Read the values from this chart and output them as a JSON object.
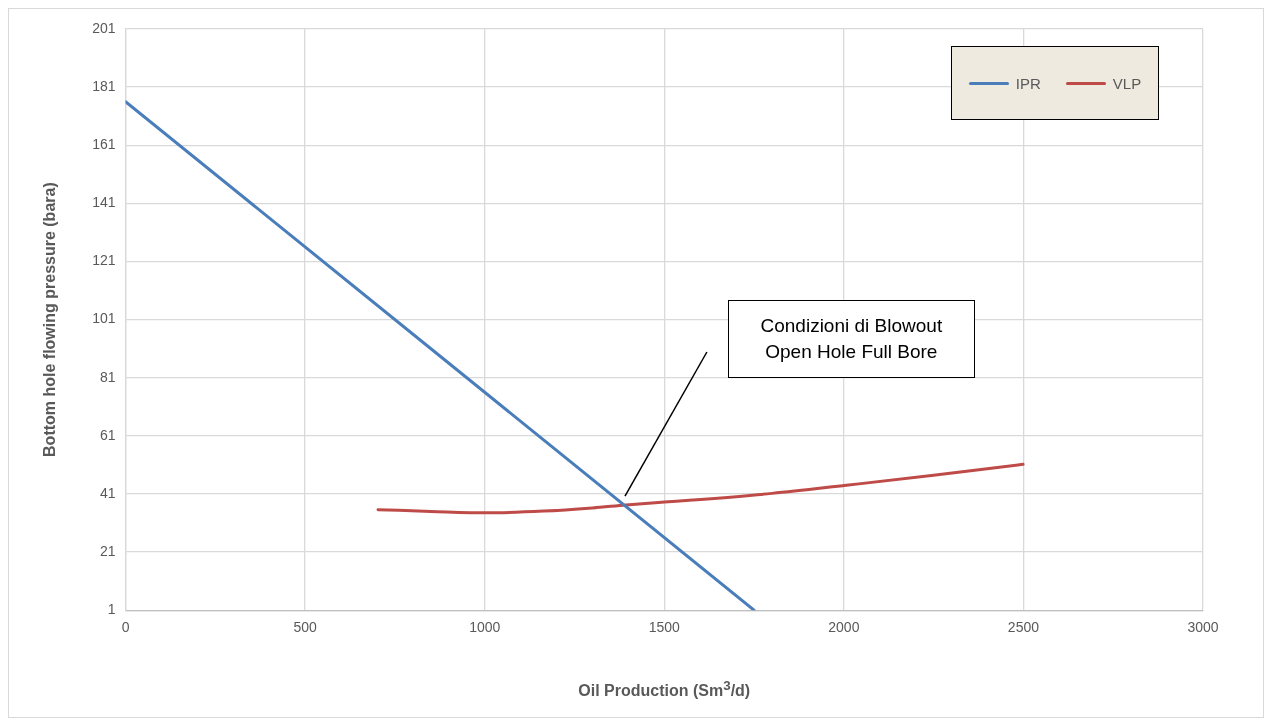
{
  "chart_data": {
    "type": "line",
    "xlabel": "Oil Production (Sm$^{3}$/d)",
    "ylabel": "Bottom hole flowing pressure (bara)",
    "xlim": [
      0,
      3000
    ],
    "xticks": [
      0,
      500,
      1000,
      1500,
      2000,
      2500,
      3000
    ],
    "ylim": [
      1,
      201
    ],
    "yticks": [
      1,
      21,
      41,
      61,
      81,
      101,
      121,
      141,
      161,
      181,
      201
    ],
    "grid": true,
    "legend": "top right",
    "marker": "none",
    "line_style": "solid",
    "series": [
      {
        "name": "IPR",
        "color": "#4a7ebb",
        "x": [
          0,
          1750
        ],
        "values": [
          176,
          1
        ]
      },
      {
        "name": "VLP",
        "color": "#be4b48",
        "x": [
          703,
          850,
          1007,
          1164,
          1300,
          1393,
          1500,
          1579,
          1800,
          2007,
          2250,
          2499
        ],
        "values": [
          35.6,
          35,
          34.5,
          35.1,
          36.2,
          37.2,
          38.2,
          38.9,
          41.2,
          44,
          47.4,
          51.2
        ]
      }
    ],
    "annotations": [
      "Condizioni di Blowout\nOpen Hole Full Bore"
    ]
  }
}
